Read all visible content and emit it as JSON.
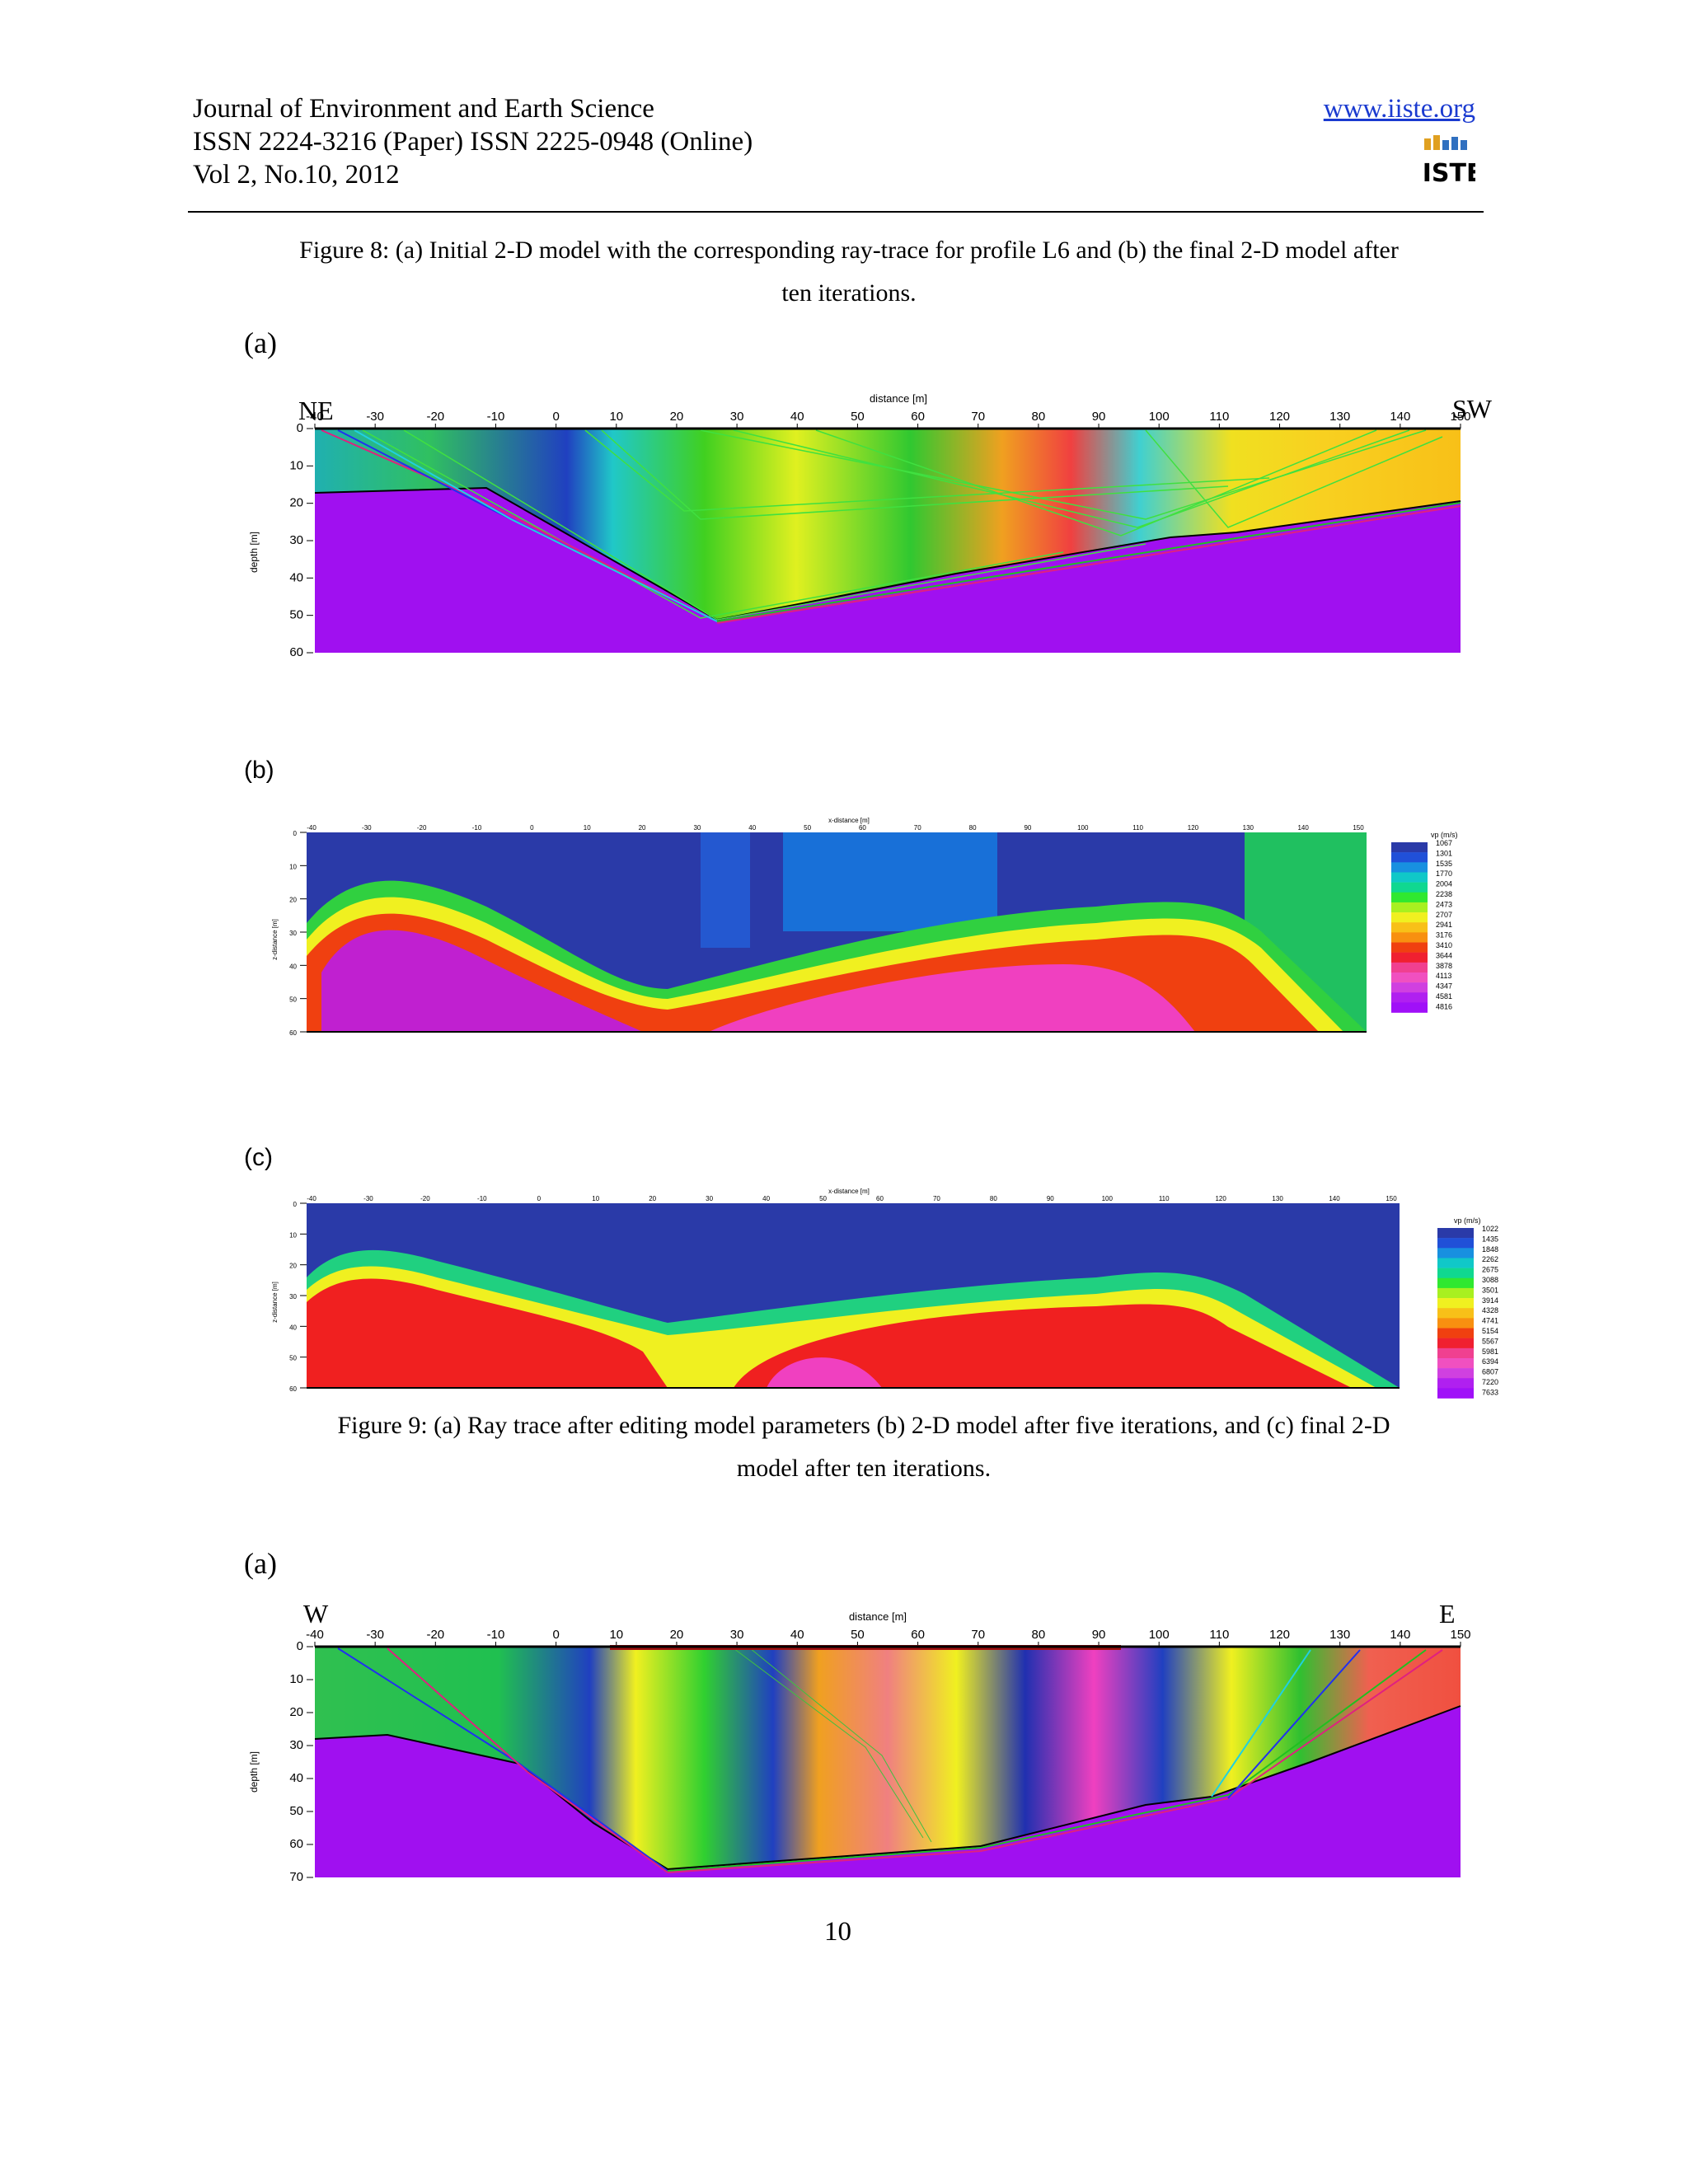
{
  "header": {
    "journal": "Journal of Environment and Earth Science",
    "issn": "ISSN 2224-3216 (Paper) ISSN 2225-0948 (Online)",
    "volume": "Vol 2, No.10, 2012",
    "url": "www.iiste.org",
    "logo_text": "IISTE"
  },
  "figure8": {
    "caption_line1": "Figure 8: (a) Initial 2-D model with the corresponding ray-trace for profile L6 and (b) the final 2-D model after",
    "caption_line2": "ten iterations.",
    "panel_a": {
      "label": "(a)",
      "left_dir": "NE",
      "right_dir": "SW",
      "xlabel": "distance [m]",
      "ylabel": "depth [m]",
      "x_ticks": [
        "-40",
        "-30",
        "-20",
        "-10",
        "0",
        "10",
        "20",
        "30",
        "40",
        "50",
        "60",
        "70",
        "80",
        "90",
        "100",
        "110",
        "120",
        "130",
        "140",
        "150"
      ],
      "y_ticks": [
        "0",
        "10",
        "20",
        "30",
        "40",
        "50",
        "60"
      ]
    }
  },
  "figure9": {
    "panel_b": {
      "label": "(b)",
      "xlabel": "x-distance [m]",
      "ylabel": "z-distance [m]",
      "x_ticks": [
        "-40",
        "-30",
        "-20",
        "-10",
        "0",
        "10",
        "20",
        "30",
        "40",
        "50",
        "60",
        "70",
        "80",
        "90",
        "100",
        "110",
        "120",
        "130",
        "140",
        "150"
      ],
      "y_ticks": [
        "0",
        "10",
        "20",
        "30",
        "40",
        "50",
        "60"
      ],
      "legend_title": "vp (m/s)",
      "legend_values": [
        "1067",
        "1301",
        "1535",
        "1770",
        "2004",
        "2238",
        "2473",
        "2707",
        "2941",
        "3176",
        "3410",
        "3644",
        "3878",
        "4113",
        "4347",
        "4581",
        "4816"
      ],
      "legend_colors": [
        "#2a3aa8",
        "#2050d8",
        "#1890e0",
        "#10c8c8",
        "#10d890",
        "#30e830",
        "#a8f020",
        "#f0f020",
        "#f8c018",
        "#f89010",
        "#f04010",
        "#f02030",
        "#f04090",
        "#f050c0",
        "#d040e0",
        "#b020f0",
        "#a010f8"
      ]
    },
    "panel_c": {
      "label": "(c)",
      "xlabel": "x-distance [m]",
      "ylabel": "z-distance [m]",
      "x_ticks": [
        "-40",
        "-30",
        "-20",
        "-10",
        "0",
        "10",
        "20",
        "30",
        "40",
        "50",
        "60",
        "70",
        "80",
        "90",
        "100",
        "110",
        "120",
        "130",
        "140",
        "150"
      ],
      "y_ticks": [
        "0",
        "10",
        "20",
        "30",
        "40",
        "50",
        "60"
      ],
      "legend_title": "vp (m/s)",
      "legend_values": [
        "1022",
        "1435",
        "1848",
        "2262",
        "2675",
        "3088",
        "3501",
        "3914",
        "4328",
        "4741",
        "5154",
        "5567",
        "5981",
        "6394",
        "6807",
        "7220",
        "7633"
      ],
      "legend_colors": [
        "#2a3aa8",
        "#2050d8",
        "#1890e0",
        "#10c8c8",
        "#10d890",
        "#30e830",
        "#a8f020",
        "#f0f020",
        "#f8c018",
        "#f89010",
        "#f04010",
        "#f02030",
        "#f04090",
        "#f050c0",
        "#d040e0",
        "#b020f0",
        "#a010f8"
      ]
    },
    "caption_line1": "Figure 9: (a) Ray trace after editing model parameters (b) 2-D model after five iterations, and (c) final 2-D",
    "caption_line2": "model after ten iterations."
  },
  "figure10": {
    "panel_a": {
      "label": "(a)",
      "left_dir": "W",
      "right_dir": "E",
      "xlabel": "distance [m]",
      "ylabel": "depth [m]",
      "x_ticks": [
        "-40",
        "-30",
        "-20",
        "-10",
        "0",
        "10",
        "20",
        "30",
        "40",
        "50",
        "60",
        "70",
        "80",
        "90",
        "100",
        "110",
        "120",
        "130",
        "140",
        "150"
      ],
      "y_ticks": [
        "0",
        "10",
        "20",
        "30",
        "40",
        "50",
        "60",
        "70"
      ]
    }
  },
  "page_number": "10"
}
